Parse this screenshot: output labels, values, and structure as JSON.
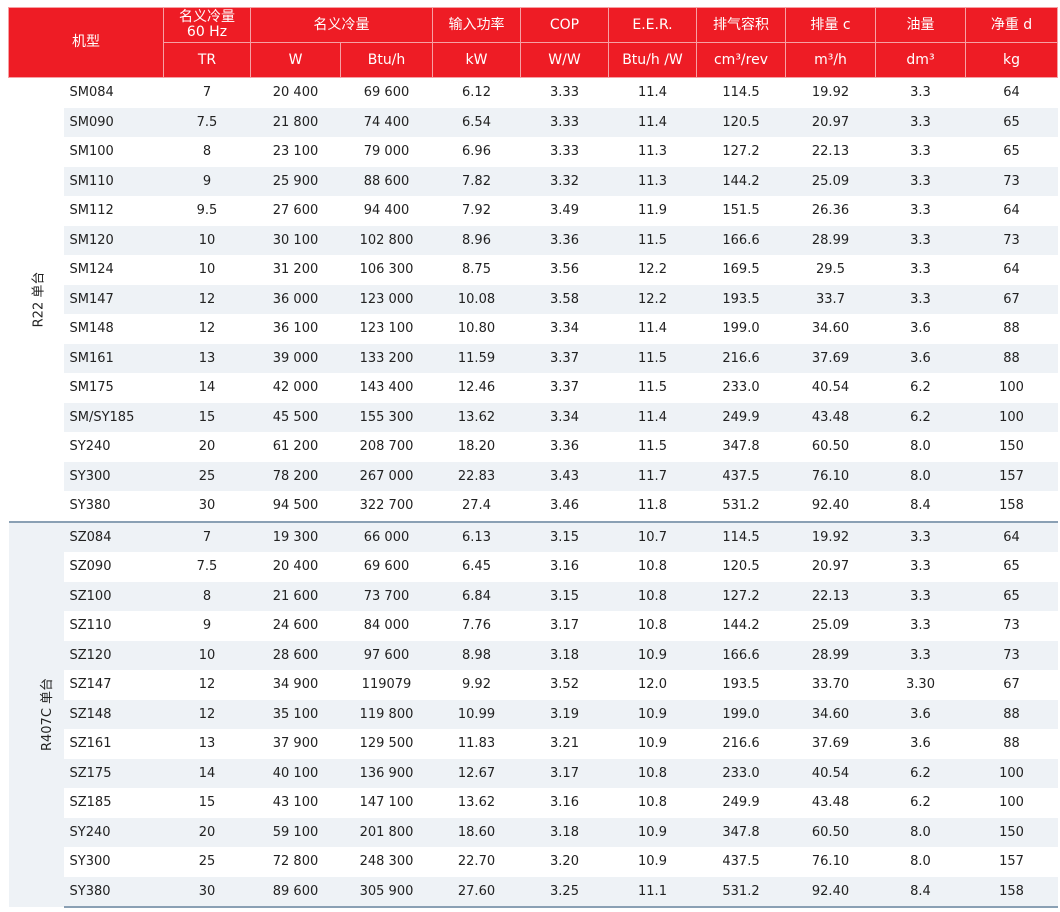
{
  "header": {
    "model": "机型",
    "top": [
      "名义冷量\n60 Hz",
      "名义冷量",
      "输入功率",
      "COP",
      "E.E.R.",
      "排气容积",
      "排量 c",
      "油量",
      "净重 d"
    ],
    "units": [
      "TR",
      "W",
      "Btu/h",
      "kW",
      "W/W",
      "Btu/h /W",
      "cm³/rev",
      "m³/h",
      "dm³",
      "kg"
    ]
  },
  "groups": [
    {
      "label": "R22 单台",
      "rows": [
        [
          "SM084",
          "7",
          "20 400",
          "69 600",
          "6.12",
          "3.33",
          "11.4",
          "114.5",
          "19.92",
          "3.3",
          "64"
        ],
        [
          "SM090",
          "7.5",
          "21 800",
          "74 400",
          "6.54",
          "3.33",
          "11.4",
          "120.5",
          "20.97",
          "3.3",
          "65"
        ],
        [
          "SM100",
          "8",
          "23 100",
          "79 000",
          "6.96",
          "3.33",
          "11.3",
          "127.2",
          "22.13",
          "3.3",
          "65"
        ],
        [
          "SM110",
          "9",
          "25 900",
          "88 600",
          "7.82",
          "3.32",
          "11.3",
          "144.2",
          "25.09",
          "3.3",
          "73"
        ],
        [
          "SM112",
          "9.5",
          "27 600",
          "94 400",
          "7.92",
          "3.49",
          "11.9",
          "151.5",
          "26.36",
          "3.3",
          "64"
        ],
        [
          "SM120",
          "10",
          "30 100",
          "102 800",
          "8.96",
          "3.36",
          "11.5",
          "166.6",
          "28.99",
          "3.3",
          "73"
        ],
        [
          "SM124",
          "10",
          "31 200",
          "106 300",
          "8.75",
          "3.56",
          "12.2",
          "169.5",
          "29.5",
          "3.3",
          "64"
        ],
        [
          "SM147",
          "12",
          "36 000",
          "123 000",
          "10.08",
          "3.58",
          "12.2",
          "193.5",
          "33.7",
          "3.3",
          "67"
        ],
        [
          "SM148",
          "12",
          "36 100",
          "123 100",
          "10.80",
          "3.34",
          "11.4",
          "199.0",
          "34.60",
          "3.6",
          "88"
        ],
        [
          "SM161",
          "13",
          "39 000",
          "133 200",
          "11.59",
          "3.37",
          "11.5",
          "216.6",
          "37.69",
          "3.6",
          "88"
        ],
        [
          "SM175",
          "14",
          "42 000",
          "143 400",
          "12.46",
          "3.37",
          "11.5",
          "233.0",
          "40.54",
          "6.2",
          "100"
        ],
        [
          "SM/SY185",
          "15",
          "45 500",
          "155 300",
          "13.62",
          "3.34",
          "11.4",
          "249.9",
          "43.48",
          "6.2",
          "100"
        ],
        [
          "SY240",
          "20",
          "61 200",
          "208 700",
          "18.20",
          "3.36",
          "11.5",
          "347.8",
          "60.50",
          "8.0",
          "150"
        ],
        [
          "SY300",
          "25",
          "78 200",
          "267 000",
          "22.83",
          "3.43",
          "11.7",
          "437.5",
          "76.10",
          "8.0",
          "157"
        ],
        [
          "SY380",
          "30",
          "94 500",
          "322 700",
          "27.4",
          "3.46",
          "11.8",
          "531.2",
          "92.40",
          "8.4",
          "158"
        ]
      ]
    },
    {
      "label": "R407C 单台",
      "rows": [
        [
          "SZ084",
          "7",
          "19 300",
          "66 000",
          "6.13",
          "3.15",
          "10.7",
          "114.5",
          "19.92",
          "3.3",
          "64"
        ],
        [
          "SZ090",
          "7.5",
          "20 400",
          "69 600",
          "6.45",
          "3.16",
          "10.8",
          "120.5",
          "20.97",
          "3.3",
          "65"
        ],
        [
          "SZ100",
          "8",
          "21 600",
          "73 700",
          "6.84",
          "3.15",
          "10.8",
          "127.2",
          "22.13",
          "3.3",
          "65"
        ],
        [
          "SZ110",
          "9",
          "24 600",
          "84 000",
          "7.76",
          "3.17",
          "10.8",
          "144.2",
          "25.09",
          "3.3",
          "73"
        ],
        [
          "SZ120",
          "10",
          "28 600",
          "97 600",
          "8.98",
          "3.18",
          "10.9",
          "166.6",
          "28.99",
          "3.3",
          "73"
        ],
        [
          "SZ147",
          "12",
          "34 900",
          "119079",
          "9.92",
          "3.52",
          "12.0",
          "193.5",
          "33.70",
          "3.30",
          "67"
        ],
        [
          "SZ148",
          "12",
          "35 100",
          "119 800",
          "10.99",
          "3.19",
          "10.9",
          "199.0",
          "34.60",
          "3.6",
          "88"
        ],
        [
          "SZ161",
          "13",
          "37 900",
          "129 500",
          "11.83",
          "3.21",
          "10.9",
          "216.6",
          "37.69",
          "3.6",
          "88"
        ],
        [
          "SZ175",
          "14",
          "40 100",
          "136 900",
          "12.67",
          "3.17",
          "10.8",
          "233.0",
          "40.54",
          "6.2",
          "100"
        ],
        [
          "SZ185",
          "15",
          "43 100",
          "147 100",
          "13.62",
          "3.16",
          "10.8",
          "249.9",
          "43.48",
          "6.2",
          "100"
        ],
        [
          "SY240",
          "20",
          "59 100",
          "201 800",
          "18.60",
          "3.18",
          "10.9",
          "347.8",
          "60.50",
          "8.0",
          "150"
        ],
        [
          "SY300",
          "25",
          "72 800",
          "248 300",
          "22.70",
          "3.20",
          "10.9",
          "437.5",
          "76.10",
          "8.0",
          "157"
        ],
        [
          "SY380",
          "30",
          "89 600",
          "305 900",
          "27.60",
          "3.25",
          "11.1",
          "531.2",
          "92.40",
          "8.4",
          "158"
        ]
      ]
    }
  ],
  "colors": {
    "header_bg": "#ee1c25",
    "row_shade": "#eef2f6",
    "divider": "#8aa0b4"
  }
}
